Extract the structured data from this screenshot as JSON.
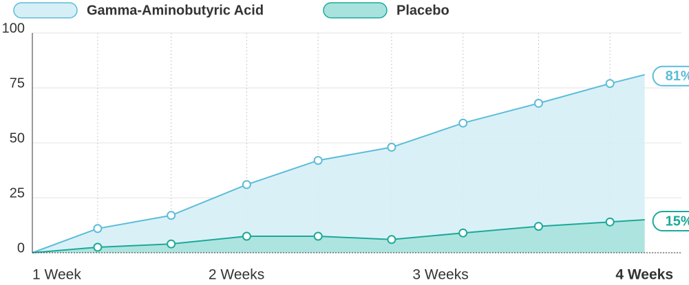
{
  "chart_data": {
    "type": "area",
    "x": [
      1,
      1.32,
      1.68,
      2.05,
      2.4,
      2.76,
      3.11,
      3.48,
      3.83,
      4
    ],
    "series": [
      {
        "name": "Gamma-Aminobutyric Acid",
        "color": "#5bbcd8",
        "fill": "#d6eef6",
        "values": [
          0,
          11,
          17,
          31,
          42,
          48,
          59,
          68,
          77,
          81
        ],
        "value_labels": [
          null,
          null,
          null,
          null,
          null,
          null,
          null,
          null,
          null,
          "81%"
        ]
      },
      {
        "name": "Placebo",
        "color": "#1aa99a",
        "fill": "#a8e2dc",
        "values": [
          0,
          2.5,
          4,
          7.5,
          7.5,
          6,
          9,
          12,
          14,
          15
        ],
        "value_labels": [
          null,
          null,
          null,
          null,
          null,
          null,
          null,
          null,
          null,
          "15%"
        ]
      }
    ],
    "xlim": [
      1,
      4.18
    ],
    "xticks": [
      {
        "value": 1,
        "label": "1 Week"
      },
      {
        "value": 2,
        "label": "2 Weeks"
      },
      {
        "value": 3,
        "label": "3 Weeks"
      },
      {
        "value": 4,
        "label": "4 Weeks"
      }
    ],
    "ylim": [
      0,
      100
    ],
    "yticks": [
      0,
      25,
      50,
      75,
      100
    ],
    "grid": true
  }
}
